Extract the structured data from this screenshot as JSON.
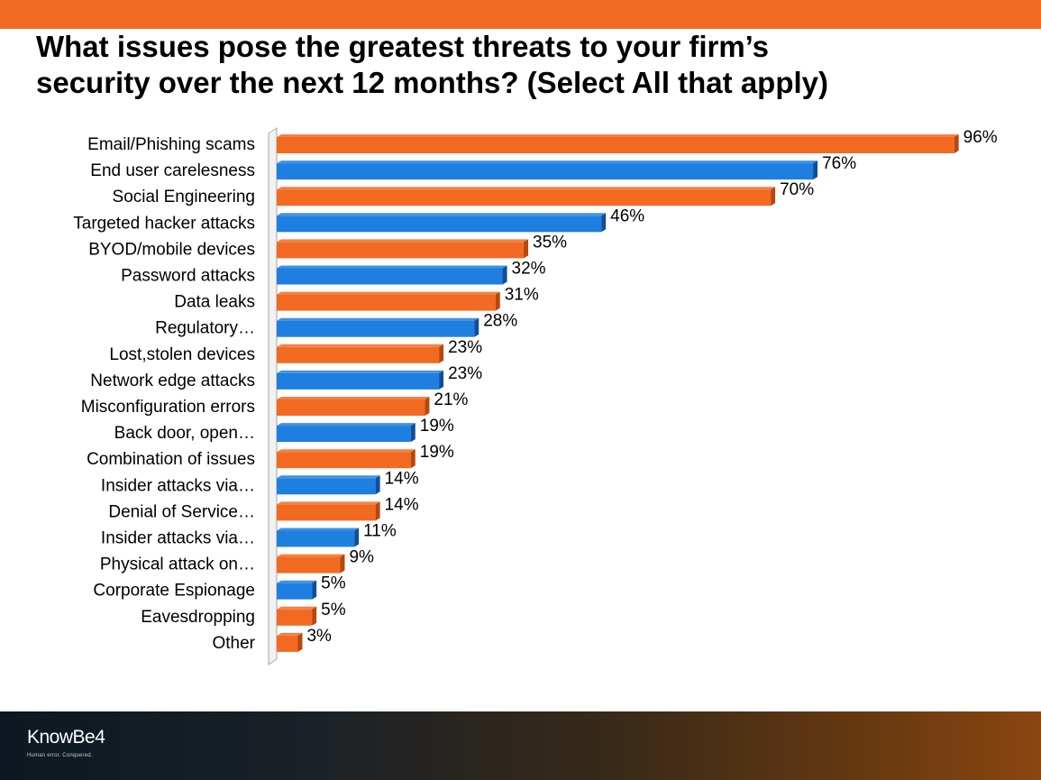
{
  "header": {
    "title_line1": "What issues pose the greatest threats to your firm’s",
    "title_line2": "security over the next 12 months? (Select All that apply)"
  },
  "chart_data": {
    "type": "bar",
    "orientation": "horizontal",
    "title": "What issues pose the greatest threats to your firm’s security over the next 12 months? (Select All that apply)",
    "xlabel": "",
    "ylabel": "",
    "xlim": [
      0,
      100
    ],
    "grid": false,
    "legend": "none",
    "categories": [
      "Email/Phishing scams",
      "End user carelesness",
      "Social Engineering",
      "Targeted hacker attacks",
      "BYOD/mobile devices",
      "Password attacks",
      "Data leaks",
      "Regulatory…",
      "Lost,stolen devices",
      "Network edge attacks",
      "Misconfiguration errors",
      "Back door, open…",
      "Combination of issues",
      "Insider attacks via…",
      "Denial of Service…",
      "Insider attacks via…",
      "Physical attack on…",
      "Corporate Espionage",
      "Eavesdropping",
      "Other"
    ],
    "values": [
      96,
      76,
      70,
      46,
      35,
      32,
      31,
      28,
      23,
      23,
      21,
      19,
      19,
      14,
      14,
      11,
      9,
      5,
      5,
      3
    ],
    "value_labels": [
      "96%",
      "76%",
      "70%",
      "46%",
      "35%",
      "32%",
      "31%",
      "28%",
      "23%",
      "23%",
      "21%",
      "19%",
      "19%",
      "14%",
      "14%",
      "11%",
      "9%",
      "5%",
      "5%",
      "3%"
    ],
    "bar_colors": [
      "orange",
      "blue",
      "orange",
      "blue",
      "orange",
      "blue",
      "orange",
      "blue",
      "orange",
      "blue",
      "orange",
      "blue",
      "orange",
      "blue",
      "orange",
      "blue",
      "orange",
      "blue",
      "orange",
      "orange"
    ],
    "colors": {
      "orange": "#f26a21",
      "orange_dark": "#b8470e",
      "blue": "#1e7fe0",
      "blue_dark": "#0f4f9a",
      "axis": "#a6a6a6"
    }
  },
  "footer": {
    "logo_text": "KnowBe4",
    "logo_tagline": "Human error. Conquered."
  }
}
